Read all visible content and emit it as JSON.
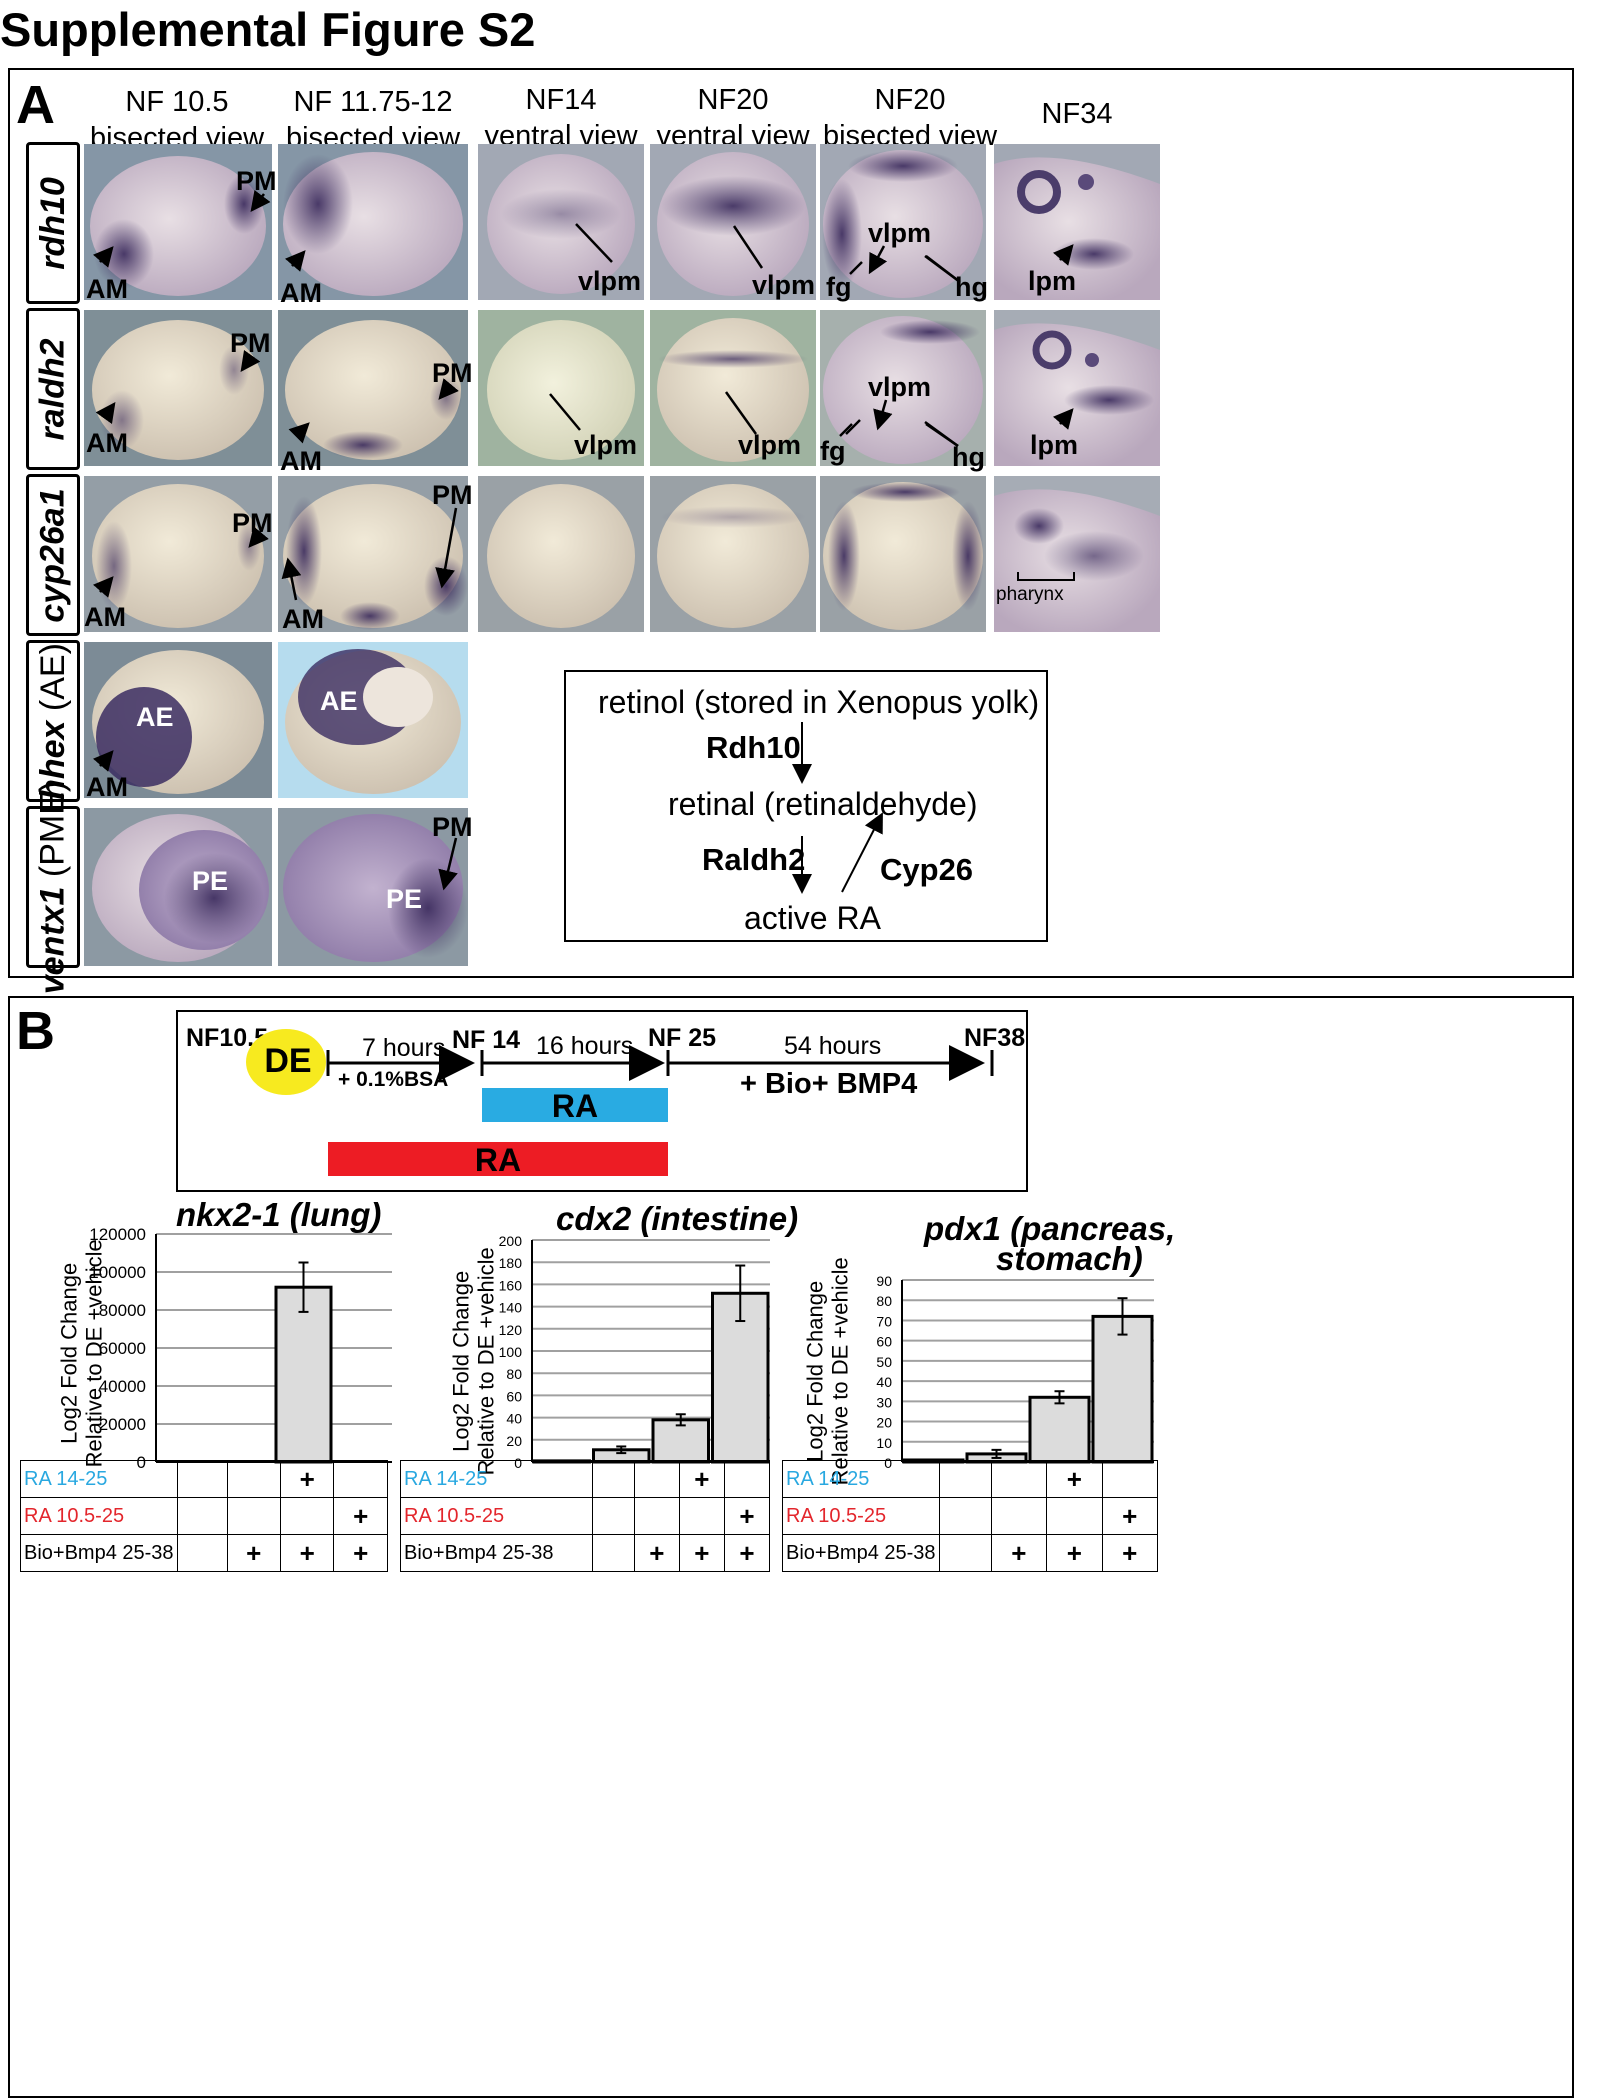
{
  "figure": {
    "title": "Supplemental Figure S2"
  },
  "panel_a": {
    "letter": "A",
    "columns": [
      {
        "line1": "NF 10.5",
        "line2": "bisected view"
      },
      {
        "line1": "NF 11.75-12",
        "line2": "bisected view"
      },
      {
        "line1": "NF14",
        "line2": "ventral view"
      },
      {
        "line1": "NF20",
        "line2": "ventral view"
      },
      {
        "line1": "NF20",
        "line2": "bisected view"
      },
      {
        "line1": "NF34",
        "line2": ""
      }
    ],
    "rows": [
      {
        "gene": "rdh10",
        "suffix": ""
      },
      {
        "gene": "raldh2",
        "suffix": ""
      },
      {
        "gene": "cyp26a1",
        "suffix": ""
      },
      {
        "gene": "hhex",
        "suffix": " (AE)"
      },
      {
        "gene": "ventx1",
        "suffix": " (PME)"
      }
    ],
    "labels": {
      "am": "AM",
      "pm": "PM",
      "vlpm": "vlpm",
      "fg": "fg",
      "hg": "hg",
      "lpm": "lpm",
      "pharynx": "pharynx",
      "ae": "AE",
      "pe": "PE"
    },
    "pathway": {
      "retinol": "retinol (stored in Xenopus yolk)",
      "rdh10": "Rdh10",
      "retinal": "retinal (retinaldehyde)",
      "raldh2": "Raldh2",
      "cyp26": "Cyp26",
      "active_ra": "active RA"
    }
  },
  "panel_b": {
    "letter": "B",
    "timeline": {
      "start": "NF10.5",
      "de": "DE",
      "nf14": "NF 14",
      "nf25": "NF 25",
      "nf38": "NF38",
      "hours7": "7 hours",
      "bsa": "+ 0.1%BSA",
      "hours16": "16 hours",
      "hours54": "54 hours",
      "bio_bmp4": "+ Bio+ BMP4",
      "ra_blue": "RA",
      "ra_red": "RA",
      "colors": {
        "de": "#f7ea1f",
        "ra_blue": "#29abe2",
        "ra_red": "#ed1c24"
      }
    },
    "condition_rows": [
      {
        "label": "RA 14-25",
        "marks": [
          "",
          "",
          "+",
          ""
        ]
      },
      {
        "label": "RA 10.5-25",
        "marks": [
          "",
          "",
          "",
          "+"
        ]
      },
      {
        "label": "Bio+Bmp4 25-38",
        "marks": [
          "",
          "+",
          "+",
          "+"
        ]
      }
    ],
    "ylabel_line1": "Log2 Fold Change",
    "ylabel_line2": "Relative to DE +vehicle"
  },
  "chart_data": [
    {
      "type": "bar",
      "title": "nkx2-1 (lung)",
      "ylabel": "Log2 Fold Change Relative to DE +vehicle",
      "ylim": [
        0,
        120000
      ],
      "yticks": [
        0,
        20000,
        40000,
        60000,
        80000,
        100000,
        120000
      ],
      "values": [
        0,
        0,
        92000,
        0
      ],
      "errors": [
        0,
        0,
        13000,
        0
      ],
      "grid": true
    },
    {
      "type": "bar",
      "title": "cdx2 (intestine)",
      "ylabel": "Log2 Fold Change Relative to DE +vehicle",
      "ylim": [
        0,
        200
      ],
      "yticks": [
        0,
        20,
        40,
        60,
        80,
        100,
        120,
        140,
        160,
        180,
        200
      ],
      "values": [
        1,
        11,
        38,
        152
      ],
      "errors": [
        0,
        3,
        5,
        25
      ],
      "grid": true
    },
    {
      "type": "bar",
      "title": "pdx1 (pancreas, stomach)",
      "ylabel": "Log2 Fold Change Relative to DE +vehicle",
      "ylim": [
        0,
        90
      ],
      "yticks": [
        0,
        10,
        20,
        30,
        40,
        50,
        60,
        70,
        80,
        90
      ],
      "values": [
        1,
        4,
        32,
        72
      ],
      "errors": [
        0,
        2,
        3,
        9
      ],
      "grid": true
    }
  ]
}
